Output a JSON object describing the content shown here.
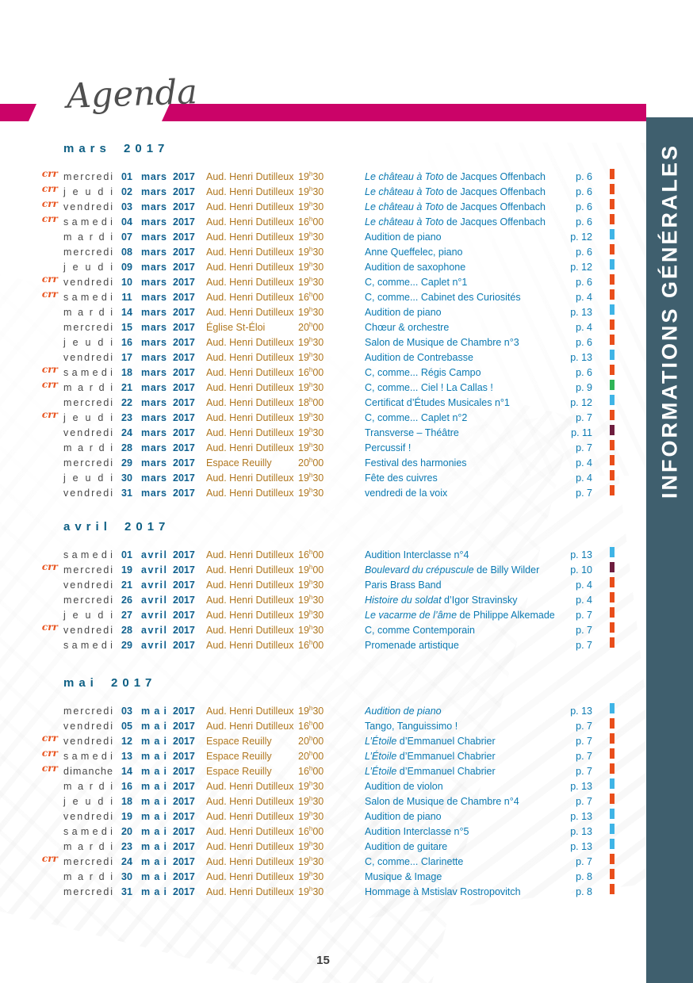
{
  "page": {
    "title": "Agenda",
    "sidebar_label": "INFORMATIONS GÉNÉRALES",
    "page_number": "15"
  },
  "icons": {
    "row_logo": "crr-logo",
    "row_logo_text": "crr"
  },
  "colors": {
    "magenta": "#cb0368",
    "sidebar_teal": "#3f5f6e",
    "heading_blue": "#0e5f84",
    "date_blue": "#10618f",
    "title_blue": "#0b7ab2",
    "venue_ochre": "#b0771f",
    "day_gray": "#474747",
    "logo_orange": "#e8541f",
    "ticks": {
      "orange": "#e94e1b",
      "blue": "#3fb4e6",
      "green": "#2fb457",
      "maroon": "#6e1e3f"
    }
  },
  "sections": [
    {
      "heading": "mars 2017",
      "rows": [
        {
          "logo": true,
          "day": "mercredi",
          "num": "01",
          "month": "mars",
          "year": "2017",
          "venue": "Aud. Henri Dutilleux",
          "time": "19h30",
          "em": "Le château à Toto",
          "rest": "de Jacques Offenbach",
          "page": "p. 6",
          "tick": "orange"
        },
        {
          "logo": true,
          "day": "jeudi",
          "num": "02",
          "month": "mars",
          "year": "2017",
          "venue": "Aud. Henri Dutilleux",
          "time": "19h30",
          "em": "Le château à Toto",
          "rest": "de Jacques Offenbach",
          "page": "p. 6",
          "tick": "orange"
        },
        {
          "logo": true,
          "day": "vendredi",
          "num": "03",
          "month": "mars",
          "year": "2017",
          "venue": "Aud. Henri Dutilleux",
          "time": "19h30",
          "em": "Le château à Toto",
          "rest": "de Jacques Offenbach",
          "page": "p. 6",
          "tick": "orange"
        },
        {
          "logo": true,
          "day": "samedi",
          "num": "04",
          "month": "mars",
          "year": "2017",
          "venue": "Aud. Henri Dutilleux",
          "time": "16h00",
          "em": "Le château à Toto",
          "rest": "de Jacques Offenbach",
          "page": "p. 6",
          "tick": "orange"
        },
        {
          "day": "mardi",
          "num": "07",
          "month": "mars",
          "year": "2017",
          "venue": "Aud. Henri Dutilleux",
          "time": "19h30",
          "rest": "Audition de piano",
          "page": "p. 12",
          "tick": "blue"
        },
        {
          "day": "mercredi",
          "num": "08",
          "month": "mars",
          "year": "2017",
          "venue": "Aud. Henri Dutilleux",
          "time": "19h30",
          "rest": "Anne Queffelec, piano",
          "page": "p. 6",
          "tick": "orange"
        },
        {
          "day": "jeudi",
          "num": "09",
          "month": "mars",
          "year": "2017",
          "venue": "Aud. Henri Dutilleux",
          "time": "19h30",
          "rest": "Audition de saxophone",
          "page": "p. 12",
          "tick": "blue"
        },
        {
          "logo": true,
          "day": "vendredi",
          "num": "10",
          "month": "mars",
          "year": "2017",
          "venue": "Aud. Henri Dutilleux",
          "time": "19h30",
          "rest": "C, comme... Caplet n°1",
          "page": "p. 6",
          "tick": "orange"
        },
        {
          "logo": true,
          "day": "samedi",
          "num": "11",
          "month": "mars",
          "year": "2017",
          "venue": "Aud. Henri Dutilleux",
          "time": "16h00",
          "rest": "C, comme... Cabinet des Curiosités",
          "page": "p. 4",
          "tick": "orange"
        },
        {
          "day": "mardi",
          "num": "14",
          "month": "mars",
          "year": "2017",
          "venue": "Aud. Henri Dutilleux",
          "time": "19h30",
          "rest": "Audition de piano",
          "page": "p. 13",
          "tick": "blue"
        },
        {
          "day": "mercredi",
          "num": "15",
          "month": "mars",
          "year": "2017",
          "venue": "Église St-Éloi",
          "time": "20h00",
          "rest": "Chœur & orchestre",
          "page": "p. 4",
          "tick": "orange"
        },
        {
          "day": "jeudi",
          "num": "16",
          "month": "mars",
          "year": "2017",
          "venue": "Aud. Henri Dutilleux",
          "time": "19h30",
          "rest": "Salon de Musique de Chambre n°3",
          "page": "p. 6",
          "tick": "orange"
        },
        {
          "day": "vendredi",
          "num": "17",
          "month": "mars",
          "year": "2017",
          "venue": "Aud. Henri Dutilleux",
          "time": "19h30",
          "rest": "Audition de Contrebasse",
          "page": "p. 13",
          "tick": "blue"
        },
        {
          "logo": true,
          "day": "samedi",
          "num": "18",
          "month": "mars",
          "year": "2017",
          "venue": "Aud. Henri Dutilleux",
          "time": "16h00",
          "rest": "C, comme... Régis Campo",
          "page": "p. 6",
          "tick": "orange"
        },
        {
          "logo": true,
          "day": "mardi",
          "num": "21",
          "month": "mars",
          "year": "2017",
          "venue": "Aud. Henri Dutilleux",
          "time": "19h30",
          "rest": "C, comme... Ciel ! La Callas !",
          "page": "p. 9",
          "tick": "green"
        },
        {
          "day": "mercredi",
          "num": "22",
          "month": "mars",
          "year": "2017",
          "venue": "Aud. Henri Dutilleux",
          "time": "18h00",
          "rest": "Certificat d’Études Musicales n°1",
          "page": "p. 12",
          "tick": "blue"
        },
        {
          "logo": true,
          "day": "jeudi",
          "num": "23",
          "month": "mars",
          "year": "2017",
          "venue": "Aud. Henri Dutilleux",
          "time": "19h30",
          "rest": "C, comme... Caplet n°2",
          "page": "p. 7",
          "tick": "orange"
        },
        {
          "day": "vendredi",
          "num": "24",
          "month": "mars",
          "year": "2017",
          "venue": "Aud. Henri Dutilleux",
          "time": "19h30",
          "rest": "Transverse – Théâtre",
          "page": "p. 11",
          "tick": "maroon"
        },
        {
          "day": "mardi",
          "num": "28",
          "month": "mars",
          "year": "2017",
          "venue": "Aud. Henri Dutilleux",
          "time": "19h30",
          "rest": "Percussif !",
          "page": "p. 7",
          "tick": "orange"
        },
        {
          "day": "mercredi",
          "num": "29",
          "month": "mars",
          "year": "2017",
          "venue": "Espace Reuilly",
          "time": "20h00",
          "rest": "Festival des harmonies",
          "page": "p. 4",
          "tick": "orange"
        },
        {
          "day": "jeudi",
          "num": "30",
          "month": "mars",
          "year": "2017",
          "venue": "Aud. Henri Dutilleux",
          "time": "19h30",
          "rest": "Fête des cuivres",
          "page": "p. 4",
          "tick": "orange"
        },
        {
          "day": "vendredi",
          "num": "31",
          "month": "mars",
          "year": "2017",
          "venue": "Aud. Henri Dutilleux",
          "time": "19h30",
          "rest": "vendredi de la voix",
          "page": "p. 7",
          "tick": "orange"
        }
      ]
    },
    {
      "heading": "avril 2017",
      "rows": [
        {
          "day": "samedi",
          "num": "01",
          "month": "avril",
          "year": "2017",
          "venue": "Aud. Henri Dutilleux",
          "time": "16h00",
          "rest": "Audition Interclasse n°4",
          "page": "p. 13",
          "tick": "blue"
        },
        {
          "logo": true,
          "day": "mercredi",
          "num": "19",
          "month": "avril",
          "year": "2017",
          "venue": "Aud. Henri Dutilleux",
          "time": "19h00",
          "em": "Boulevard du crépuscule",
          "rest": "de Billy Wilder",
          "page": "p. 10",
          "tick": "maroon"
        },
        {
          "day": "vendredi",
          "num": "21",
          "month": "avril",
          "year": "2017",
          "venue": "Aud. Henri Dutilleux",
          "time": "19h30",
          "rest": "Paris Brass Band",
          "page": "p. 4",
          "tick": "orange"
        },
        {
          "day": "mercredi",
          "num": "26",
          "month": "avril",
          "year": "2017",
          "venue": "Aud. Henri Dutilleux",
          "time": "19h30",
          "em": "Histoire du soldat",
          "rest": "d’Igor Stravinsky",
          "page": "p. 4",
          "tick": "orange"
        },
        {
          "day": "jeudi",
          "num": "27",
          "month": "avril",
          "year": "2017",
          "venue": "Aud. Henri Dutilleux",
          "time": "19h30",
          "em": "Le vacarme de l’âme",
          "rest": "de Philippe Alkemade",
          "page": "p. 7",
          "tick": "orange"
        },
        {
          "logo": true,
          "day": "vendredi",
          "num": "28",
          "month": "avril",
          "year": "2017",
          "venue": "Aud. Henri Dutilleux",
          "time": "19h30",
          "rest": "C, comme Contemporain",
          "page": "p. 7",
          "tick": "orange"
        },
        {
          "day": "samedi",
          "num": "29",
          "month": "avril",
          "year": "2017",
          "venue": "Aud. Henri Dutilleux",
          "time": "16h00",
          "rest": "Promenade artistique",
          "page": "p. 7",
          "tick": "orange"
        }
      ]
    },
    {
      "heading": "mai 2017",
      "rows": [
        {
          "day": "mercredi",
          "num": "03",
          "month": "mai",
          "year": "2017",
          "venue": "Aud. Henri Dutilleux",
          "time": "19h30",
          "em": "Audition de piano",
          "rest": "",
          "page": "p. 13",
          "tick": "blue"
        },
        {
          "day": "vendredi",
          "num": "05",
          "month": "mai",
          "year": "2017",
          "venue": "Aud. Henri Dutilleux",
          "time": "16h00",
          "rest": "Tango, Tanguissimo !",
          "page": "p. 7",
          "tick": "orange"
        },
        {
          "logo": true,
          "day": "vendredi",
          "num": "12",
          "month": "mai",
          "year": "2017",
          "venue": "Espace Reuilly",
          "time": "20h00",
          "em": "L’Étoile",
          "rest": "d’Emmanuel Chabrier",
          "page": "p. 7",
          "tick": "orange"
        },
        {
          "logo": true,
          "day": "samedi",
          "num": "13",
          "month": "mai",
          "year": "2017",
          "venue": "Espace Reuilly",
          "time": "20h00",
          "em": "L’Étoile",
          "rest": "d’Emmanuel Chabrier",
          "page": "p. 7",
          "tick": "orange"
        },
        {
          "logo": true,
          "day": "dimanche",
          "num": "14",
          "month": "mai",
          "year": "2017",
          "venue": "Espace Reuilly",
          "time": "16h00",
          "em": "L’Étoile",
          "rest": "d’Emmanuel Chabrier",
          "page": "p. 7",
          "tick": "orange"
        },
        {
          "day": "mardi",
          "num": "16",
          "month": "mai",
          "year": "2017",
          "venue": "Aud. Henri Dutilleux",
          "time": "19h30",
          "rest": "Audition de violon",
          "page": "p. 13",
          "tick": "blue"
        },
        {
          "day": "jeudi",
          "num": "18",
          "month": "mai",
          "year": "2017",
          "venue": "Aud. Henri Dutilleux",
          "time": "19h30",
          "rest": "Salon de Musique de Chambre n°4",
          "page": "p. 7",
          "tick": "orange"
        },
        {
          "day": "vendredi",
          "num": "19",
          "month": "mai",
          "year": "2017",
          "venue": "Aud. Henri Dutilleux",
          "time": "19h30",
          "rest": "Audition de piano",
          "page": "p. 13",
          "tick": "blue"
        },
        {
          "day": "samedi",
          "num": "20",
          "month": "mai",
          "year": "2017",
          "venue": "Aud. Henri Dutilleux",
          "time": "16h00",
          "rest": "Audition Interclasse n°5",
          "page": "p. 13",
          "tick": "blue"
        },
        {
          "day": "mardi",
          "num": "23",
          "month": "mai",
          "year": "2017",
          "venue": "Aud. Henri Dutilleux",
          "time": "19h30",
          "rest": "Audition de guitare",
          "page": "p. 13",
          "tick": "blue"
        },
        {
          "logo": true,
          "day": "mercredi",
          "num": "24",
          "month": "mai",
          "year": "2017",
          "venue": "Aud. Henri Dutilleux",
          "time": "19h30",
          "rest": "C, comme... Clarinette",
          "page": "p. 7",
          "tick": "orange"
        },
        {
          "day": "mardi",
          "num": "30",
          "month": "mai",
          "year": "2017",
          "venue": "Aud. Henri Dutilleux",
          "time": "19h30",
          "rest": "Musique & Image",
          "page": "p. 8",
          "tick": "orange"
        },
        {
          "day": "mercredi",
          "num": "31",
          "month": "mai",
          "year": "2017",
          "venue": "Aud. Henri Dutilleux",
          "time": "19h30",
          "rest": "Hommage à Mstislav Rostropovitch",
          "page": "p. 8",
          "tick": "orange"
        }
      ]
    }
  ]
}
